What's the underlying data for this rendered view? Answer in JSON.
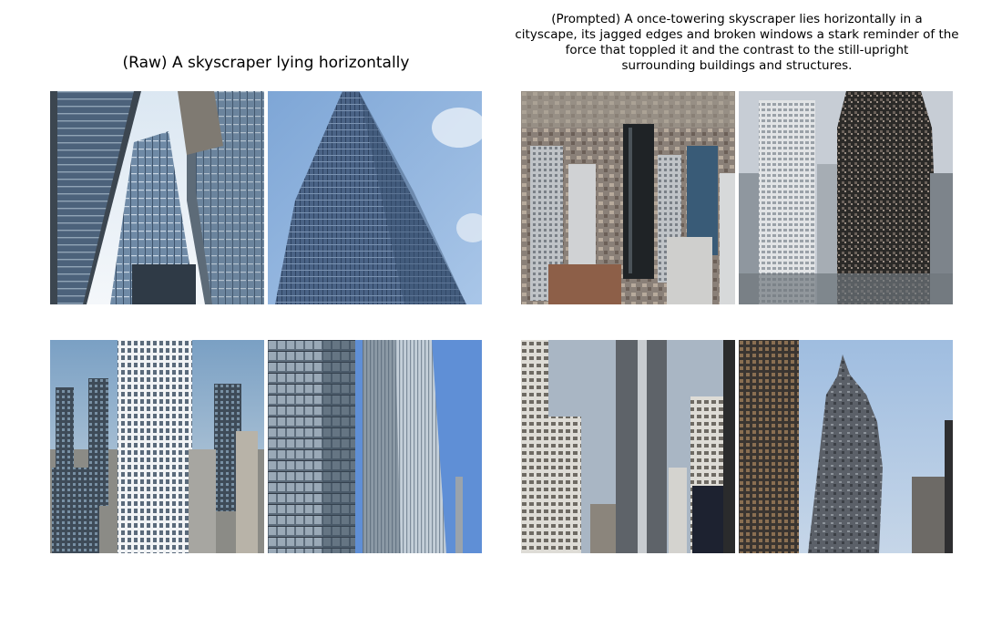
{
  "raw_panel": {
    "title": "(Raw) A skyscraper lying horizontally"
  },
  "prompted_panel": {
    "title_lines": [
      "(Prompted) A once-towering skyscraper lies horizontally in a",
      "cityscape, its jagged edges and broken windows a stark reminder of the",
      "force that toppled it and the contrast to the still-upright",
      "surrounding buildings and structures."
    ]
  }
}
